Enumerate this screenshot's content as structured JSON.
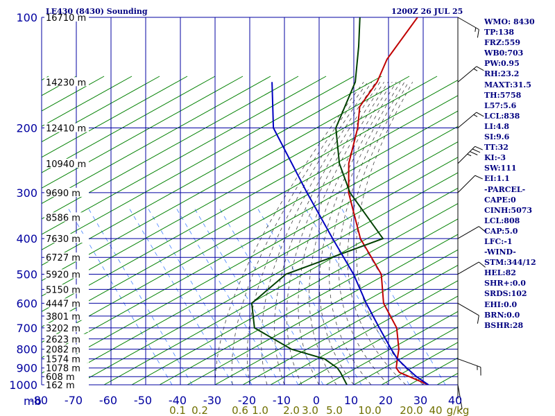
{
  "header": {
    "station": "LE430 (8430) Sounding",
    "time": "1200Z 26 JUL 25"
  },
  "indices": [
    "WMO: 8430",
    "TP:138",
    "FRZ:559",
    "WB0:703",
    "PW:0.95",
    "RH:23.2",
    "MAXT:31.5",
    "TH:5758",
    "L57:5.6",
    "LCL:838",
    "LI:4.8",
    "SI:9.6",
    "TT:32",
    "KI:-3",
    "SW:111",
    "EI:1.1",
    "-PARCEL-",
    "CAPE:0",
    "CINH:5073",
    "LCL:808",
    "CAP:5.0",
    "LFC:-1",
    "-WIND-",
    "STM:344/12",
    "HEL:82",
    "SHR+:0.0",
    "SRDS:102",
    "EHI:0.0",
    "BRN:0.0",
    "BSHR:28"
  ],
  "colors": {
    "grid": "#0000a0",
    "dry_adiabat": "#008000",
    "moist_adiabat": "#404040",
    "mixing_ratio": "#4080ff",
    "temperature": "#c00000",
    "dewpoint": "#004000",
    "parcel": "#0000c0",
    "wind": "#000000",
    "mixing_ratio_label": "#707000"
  },
  "chart_data": {
    "type": "line",
    "title": "LE430 (8430) Sounding",
    "xlabel": "",
    "ylabel": "mb",
    "xlim": [
      -80,
      30
    ],
    "ylim": [
      1000,
      100
    ],
    "grid": true,
    "pressure_labels": [
      "100",
      "200",
      "300",
      "400",
      "500",
      "600",
      "700",
      "800",
      "900",
      "1000"
    ],
    "pressure_levels": [
      100,
      200,
      300,
      400,
      500,
      600,
      700,
      800,
      900,
      1000
    ],
    "temperature_ticks": [
      "-80",
      "-70",
      "-60",
      "-50",
      "-40",
      "-30",
      "-20",
      "-10",
      "0",
      "10",
      "20",
      "30",
      "40"
    ],
    "temperature_tick_values": [
      -80,
      -70,
      -60,
      -50,
      -40,
      -30,
      -20,
      -10,
      0,
      10,
      20,
      30,
      40
    ],
    "mixing_ratio_labels": [
      "0.1",
      "0.2",
      "0.6",
      "1.0",
      "2.0",
      "3.0",
      "5.0",
      "10.0",
      "20.0",
      "40",
      "g/kg"
    ],
    "height_labels": [
      {
        "p": 100,
        "text": "16710 m"
      },
      {
        "p": 150,
        "text": "14230 m"
      },
      {
        "p": 200,
        "text": "12410 m"
      },
      {
        "p": 250,
        "text": "10940 m"
      },
      {
        "p": 300,
        "text": "9690 m"
      },
      {
        "p": 350,
        "text": "8586 m"
      },
      {
        "p": 400,
        "text": "7630 m"
      },
      {
        "p": 450,
        "text": "6727 m"
      },
      {
        "p": 500,
        "text": "5920 m"
      },
      {
        "p": 550,
        "text": "5150 m"
      },
      {
        "p": 600,
        "text": "4447 m"
      },
      {
        "p": 650,
        "text": "3801 m"
      },
      {
        "p": 700,
        "text": "3202 m"
      },
      {
        "p": 750,
        "text": "2623 m"
      },
      {
        "p": 800,
        "text": "2082 m"
      },
      {
        "p": 850,
        "text": "1574 m"
      },
      {
        "p": 900,
        "text": "1078 m"
      },
      {
        "p": 950,
        "text": "608 m"
      },
      {
        "p": 1000,
        "text": "162 m"
      }
    ],
    "series": [
      {
        "key": "temperature",
        "points": [
          [
            1000,
            31.5
          ],
          [
            925,
            20
          ],
          [
            900,
            18
          ],
          [
            850,
            16
          ],
          [
            800,
            14
          ],
          [
            700,
            8
          ],
          [
            600,
            -2
          ],
          [
            500,
            -10
          ],
          [
            400,
            -25
          ],
          [
            300,
            -40
          ],
          [
            250,
            -47.3
          ],
          [
            200,
            -53.7
          ],
          [
            175,
            -58.5
          ],
          [
            150,
            -59.7
          ],
          [
            130,
            -62.6
          ],
          [
            100,
            -64.4
          ]
        ]
      },
      {
        "key": "dewpoint",
        "points": [
          [
            1000,
            8
          ],
          [
            925,
            3
          ],
          [
            900,
            1
          ],
          [
            850,
            -5
          ],
          [
            800,
            -17
          ],
          [
            700,
            -33
          ],
          [
            600,
            -40
          ],
          [
            500,
            -37.5
          ],
          [
            400,
            -18.5
          ],
          [
            300,
            -39.6
          ],
          [
            250,
            -50
          ],
          [
            200,
            -60
          ],
          [
            150,
            -66
          ],
          [
            120,
            -74
          ],
          [
            100,
            -81
          ]
        ]
      },
      {
        "key": "parcel",
        "points": [
          [
            1000,
            31.5
          ],
          [
            950,
            26
          ],
          [
            900,
            21
          ],
          [
            850,
            16
          ],
          [
            800,
            11.8
          ],
          [
            700,
            3
          ],
          [
            600,
            -7
          ],
          [
            500,
            -18
          ],
          [
            400,
            -33
          ],
          [
            300,
            -52
          ],
          [
            200,
            -78
          ],
          [
            150,
            -90
          ]
        ]
      }
    ],
    "wind_barbs": [
      {
        "p": 100,
        "dir": 300,
        "speed": 15
      },
      {
        "p": 150,
        "dir": 230,
        "speed": 15
      },
      {
        "p": 200,
        "dir": 230,
        "speed": 15
      },
      {
        "p": 250,
        "dir": 225,
        "speed": 35
      },
      {
        "p": 300,
        "dir": 225,
        "speed": 10
      },
      {
        "p": 400,
        "dir": 240,
        "speed": 10
      },
      {
        "p": 500,
        "dir": 240,
        "speed": 10
      },
      {
        "p": 600,
        "dir": 300,
        "speed": 10
      },
      {
        "p": 850,
        "dir": 290,
        "speed": 15
      },
      {
        "p": 1000,
        "dir": 350,
        "speed": 5
      }
    ]
  }
}
